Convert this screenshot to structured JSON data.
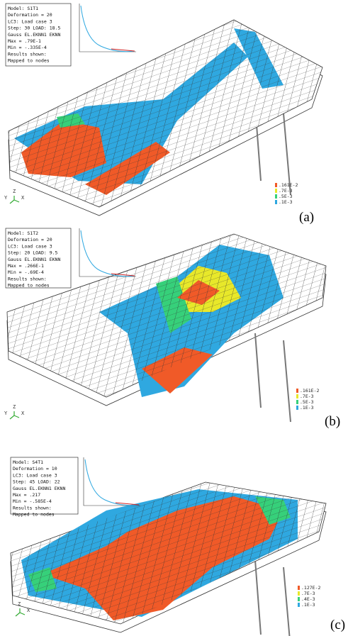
{
  "panels": [
    {
      "label": "(a)",
      "info": [
        "Model: S1T1",
        "Deformation = 20",
        "LC3: Load case 3",
        "Step: 30  LOAD: 18.5",
        "Gauss EL.EKNN1 EKNN",
        "Max = .79E-1",
        "Min = -.335E-4",
        "Results shown:",
        "Mapped to nodes"
      ],
      "legend": [
        ".161E-2",
        ".7E-3",
        ".5E-3",
        ".1E-3"
      ],
      "axes": [
        "Y",
        "Z",
        "X"
      ]
    },
    {
      "label": "(b)",
      "info": [
        "Model: S1T2",
        "Deformation = 20",
        "LC3: Load case 3",
        "Step: 20  LOAD: 9.5",
        "Gauss EL.EKNN1 EKNN",
        "Max = .266E-1",
        "Min = -.69E-4",
        "Results shown:",
        "Mapped to nodes"
      ],
      "legend": [
        ".161E-2",
        ".7E-3",
        ".5E-3",
        ".1E-3"
      ],
      "axes": [
        "Y",
        "Z",
        "X"
      ]
    },
    {
      "label": "(c)",
      "info": [
        "Model: S4T1",
        "Deformation = 10",
        "LC3: Load case 3",
        "Step: 45  LOAD: 22",
        "Gauss EL.EKNN1 EKNN",
        "Max = .217",
        "Min = -.585E-4",
        "Results shown:",
        "Mapped to nodes"
      ],
      "legend": [
        ".127E-2",
        ".7E-3",
        ".4E-3",
        ".1E-3"
      ],
      "axes": [
        "Z",
        "X"
      ]
    }
  ]
}
